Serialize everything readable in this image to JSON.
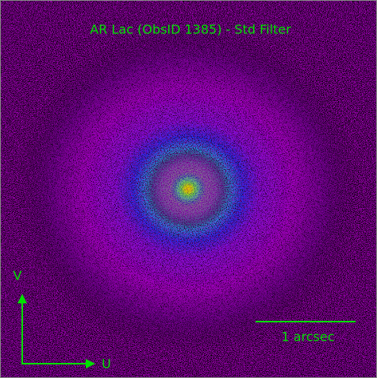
{
  "title": "AR Lac (ObsID 1385) - Std Filter",
  "axes": {
    "vertical": "V",
    "horizontal": "U"
  },
  "scale_bar": {
    "label": "1 arcsec"
  }
}
